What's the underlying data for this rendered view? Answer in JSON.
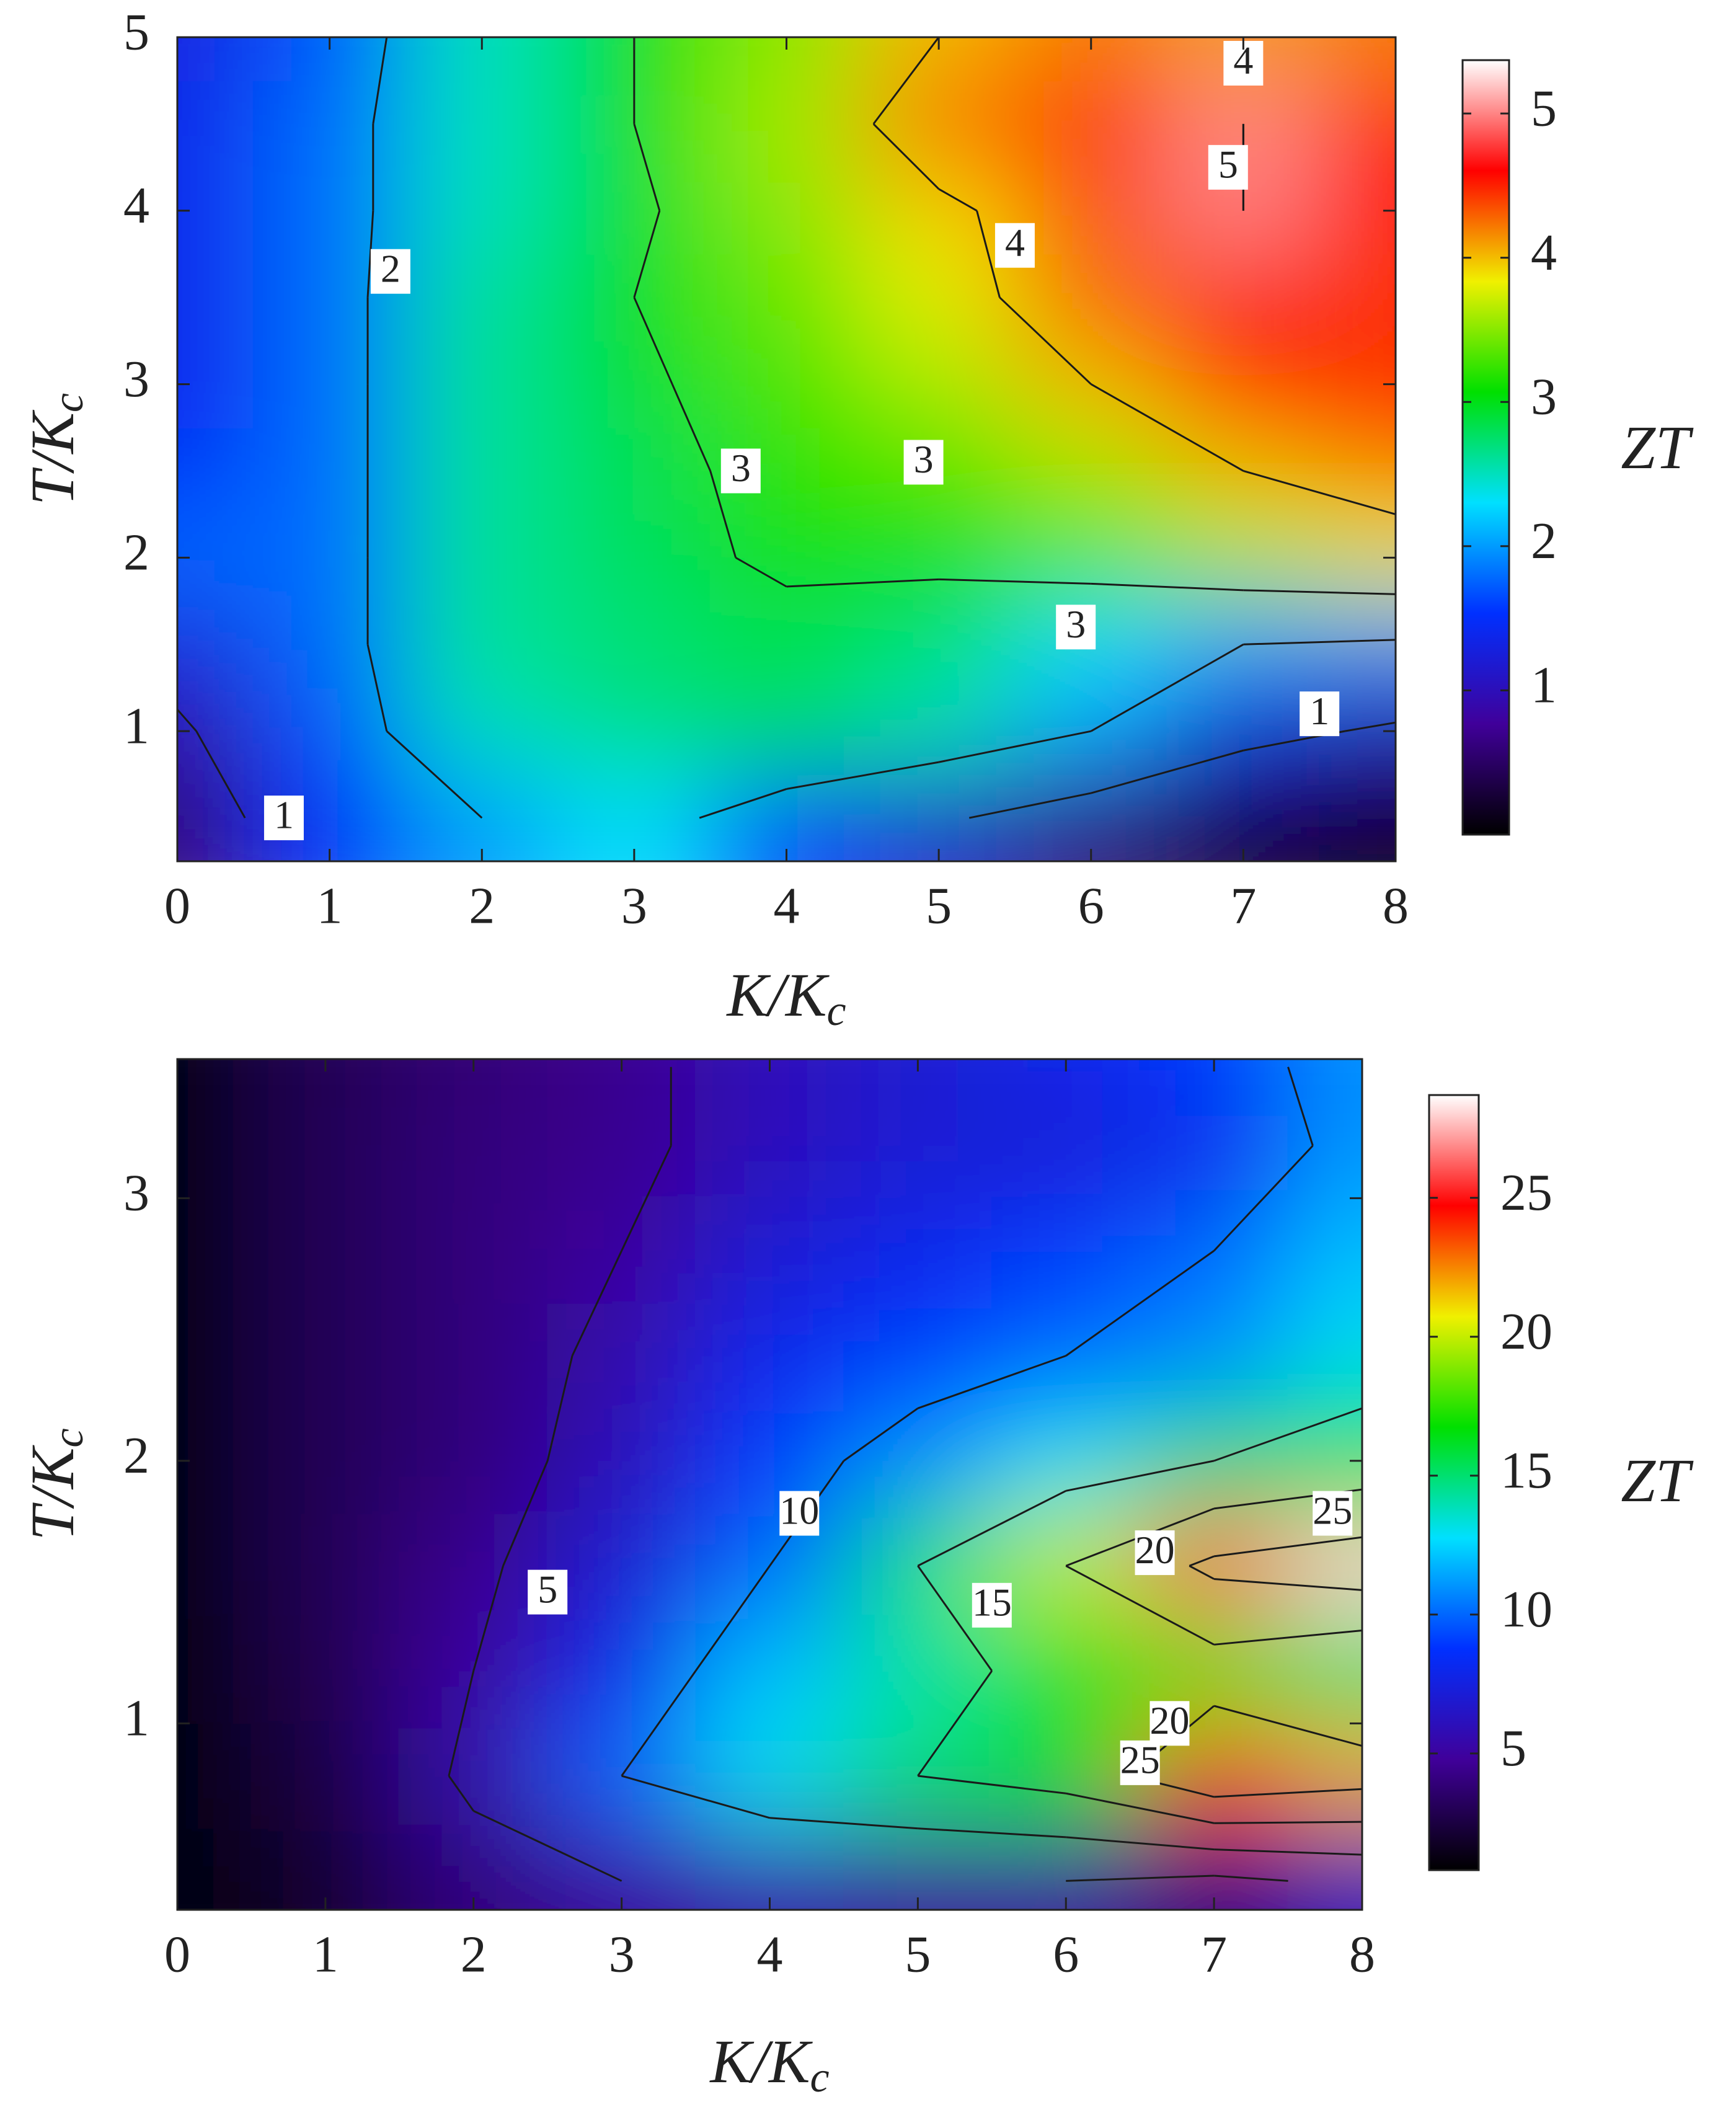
{
  "chart_data": [
    {
      "type": "heatmap",
      "xlabel": {
        "main": "K/K",
        "sub": "c"
      },
      "ylabel": {
        "main": "T/K",
        "sub": "c"
      },
      "colorbar_label": "ZT",
      "x": [
        0,
        1,
        2,
        3,
        4,
        5,
        6,
        7,
        8
      ],
      "y": [
        0.5,
        1.0,
        1.5,
        2.0,
        2.5,
        3.0,
        3.5,
        4.0,
        4.5,
        5.0
      ],
      "values": [
        [
          0.6,
          1.5,
          2.0,
          2.3,
          1.6,
          1.1,
          0.6,
          0.3,
          0.1
        ],
        [
          0.9,
          1.7,
          2.5,
          2.7,
          2.8,
          2.5,
          2.0,
          1.2,
          0.9
        ],
        [
          1.3,
          1.8,
          2.6,
          2.7,
          2.8,
          2.7,
          2.3,
          2.0,
          1.9
        ],
        [
          1.8,
          1.8,
          2.6,
          2.8,
          3.1,
          3.1,
          3.3,
          3.6,
          3.8
        ],
        [
          1.5,
          1.8,
          2.6,
          2.8,
          3.2,
          3.3,
          3.6,
          4.0,
          4.2
        ],
        [
          1.4,
          1.8,
          2.6,
          2.9,
          3.3,
          3.6,
          4.0,
          4.5,
          4.6
        ],
        [
          1.4,
          1.8,
          2.6,
          3.0,
          3.4,
          3.8,
          4.3,
          4.5,
          4.4
        ],
        [
          1.4,
          1.8,
          2.5,
          2.9,
          3.5,
          3.9,
          4.3,
          5.0,
          4.6
        ],
        [
          1.4,
          1.8,
          2.5,
          3.0,
          3.6,
          4.3,
          4.6,
          5.0,
          4.5
        ],
        [
          1.3,
          1.7,
          2.5,
          3.0,
          3.5,
          4.0,
          4.2,
          4.1,
          4.2
        ]
      ],
      "xlim": [
        0,
        8
      ],
      "xticks": [
        0,
        1,
        2,
        3,
        4,
        5,
        6,
        7,
        8
      ],
      "ylim": [
        0.25,
        5
      ],
      "yticks": [
        1,
        2,
        3,
        4,
        5
      ],
      "zlim": [
        0,
        5.37
      ],
      "zticks": [
        1,
        2,
        3,
        4,
        5
      ],
      "colormap": [
        "#000000",
        "#40009a",
        "#0030ff",
        "#00e0ff",
        "#00e000",
        "#f0f000",
        "#ff0000",
        "#ffffff"
      ],
      "contour_levels": [
        1,
        2,
        3,
        4,
        5
      ]
    },
    {
      "type": "heatmap",
      "xlabel": {
        "main": "K/K",
        "sub": "c"
      },
      "ylabel": {
        "main": "T/K",
        "sub": "c"
      },
      "colorbar_label": "ZT",
      "x": [
        0,
        1,
        2,
        3,
        4,
        5,
        6,
        7,
        8
      ],
      "y": [
        0.4,
        0.8,
        1.2,
        1.6,
        2.0,
        2.4,
        2.8,
        3.2,
        3.5
      ],
      "values": [
        [
          1,
          2,
          4,
          5,
          5.5,
          5,
          5,
          4,
          6
        ],
        [
          1,
          2.5,
          5.5,
          10,
          13,
          15,
          17,
          24,
          22
        ],
        [
          1,
          2.8,
          5,
          8,
          12,
          14,
          16,
          18,
          15
        ],
        [
          1,
          3,
          4.5,
          7,
          10,
          15,
          20,
          26,
          28
        ],
        [
          1,
          3,
          4,
          6,
          9,
          11,
          13,
          15,
          17
        ],
        [
          1,
          3,
          4,
          5.5,
          8,
          9,
          10,
          11,
          13
        ],
        [
          1,
          3,
          4,
          5,
          7,
          8,
          9,
          10,
          12
        ],
        [
          1,
          3,
          4,
          4.5,
          6,
          7,
          7,
          8,
          11
        ],
        [
          1,
          3,
          3.8,
          4.5,
          6,
          7,
          8,
          9,
          11
        ]
      ],
      "xlim": [
        0,
        8
      ],
      "xticks": [
        0,
        1,
        2,
        3,
        4,
        5,
        6,
        7,
        8
      ],
      "ylim": [
        0.29,
        3.53
      ],
      "yticks": [
        1,
        2,
        3
      ],
      "zlim": [
        0.8,
        28.7
      ],
      "zticks": [
        5,
        10,
        15,
        20,
        25
      ],
      "colormap": [
        "#000000",
        "#40009a",
        "#0030ff",
        "#00e0ff",
        "#00e000",
        "#f0f000",
        "#ff0000",
        "#ffffff"
      ],
      "contour_levels": [
        5,
        10,
        15,
        20,
        25
      ]
    }
  ]
}
